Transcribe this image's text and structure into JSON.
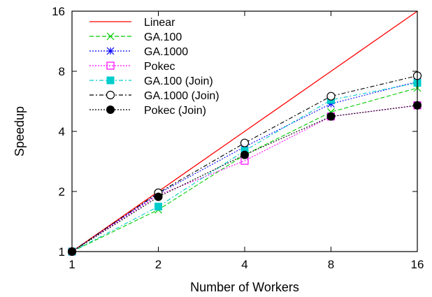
{
  "chart_data": {
    "type": "line",
    "title": "",
    "xlabel": "Number of Workers",
    "ylabel": "Speedup",
    "xscale": "log2",
    "yscale": "log2",
    "xlim": [
      1,
      16
    ],
    "ylim": [
      1,
      16
    ],
    "x": [
      1,
      2,
      4,
      8,
      16
    ],
    "xticks": [
      "1",
      "2",
      "4",
      "8",
      "16"
    ],
    "yticks": [
      "1",
      "2",
      "4",
      "8",
      "16"
    ],
    "grid": false,
    "legend_position": "top-left",
    "series": [
      {
        "name": "Linear",
        "values": [
          1,
          2,
          4,
          8,
          16
        ],
        "color": "#ff0000",
        "marker": "none",
        "dash": "solid"
      },
      {
        "name": "GA.100",
        "values": [
          1,
          1.62,
          3.05,
          5.0,
          6.6
        ],
        "color": "#00cc00",
        "marker": "x",
        "dash": "dashed"
      },
      {
        "name": "GA.1000",
        "values": [
          1,
          1.95,
          3.35,
          5.5,
          7.1
        ],
        "color": "#0000ff",
        "marker": "star",
        "dash": "dotted"
      },
      {
        "name": "Pokec",
        "values": [
          1,
          1.92,
          2.85,
          4.75,
          5.4
        ],
        "color": "#ff00ff",
        "marker": "square-open",
        "dash": "dotted"
      },
      {
        "name": "GA.100 (Join)",
        "values": [
          1,
          1.68,
          3.2,
          5.75,
          7.0
        ],
        "color": "#00cccc",
        "marker": "square-filled",
        "dash": "dashdot"
      },
      {
        "name": "GA.1000 (Join)",
        "values": [
          1,
          1.97,
          3.5,
          6.0,
          7.6
        ],
        "color": "#000000",
        "marker": "circle-open",
        "dash": "dashdot"
      },
      {
        "name": "Pokec (Join)",
        "values": [
          1,
          1.88,
          3.05,
          4.75,
          5.4
        ],
        "color": "#000000",
        "marker": "circle-filled",
        "dash": "dotted"
      }
    ]
  }
}
